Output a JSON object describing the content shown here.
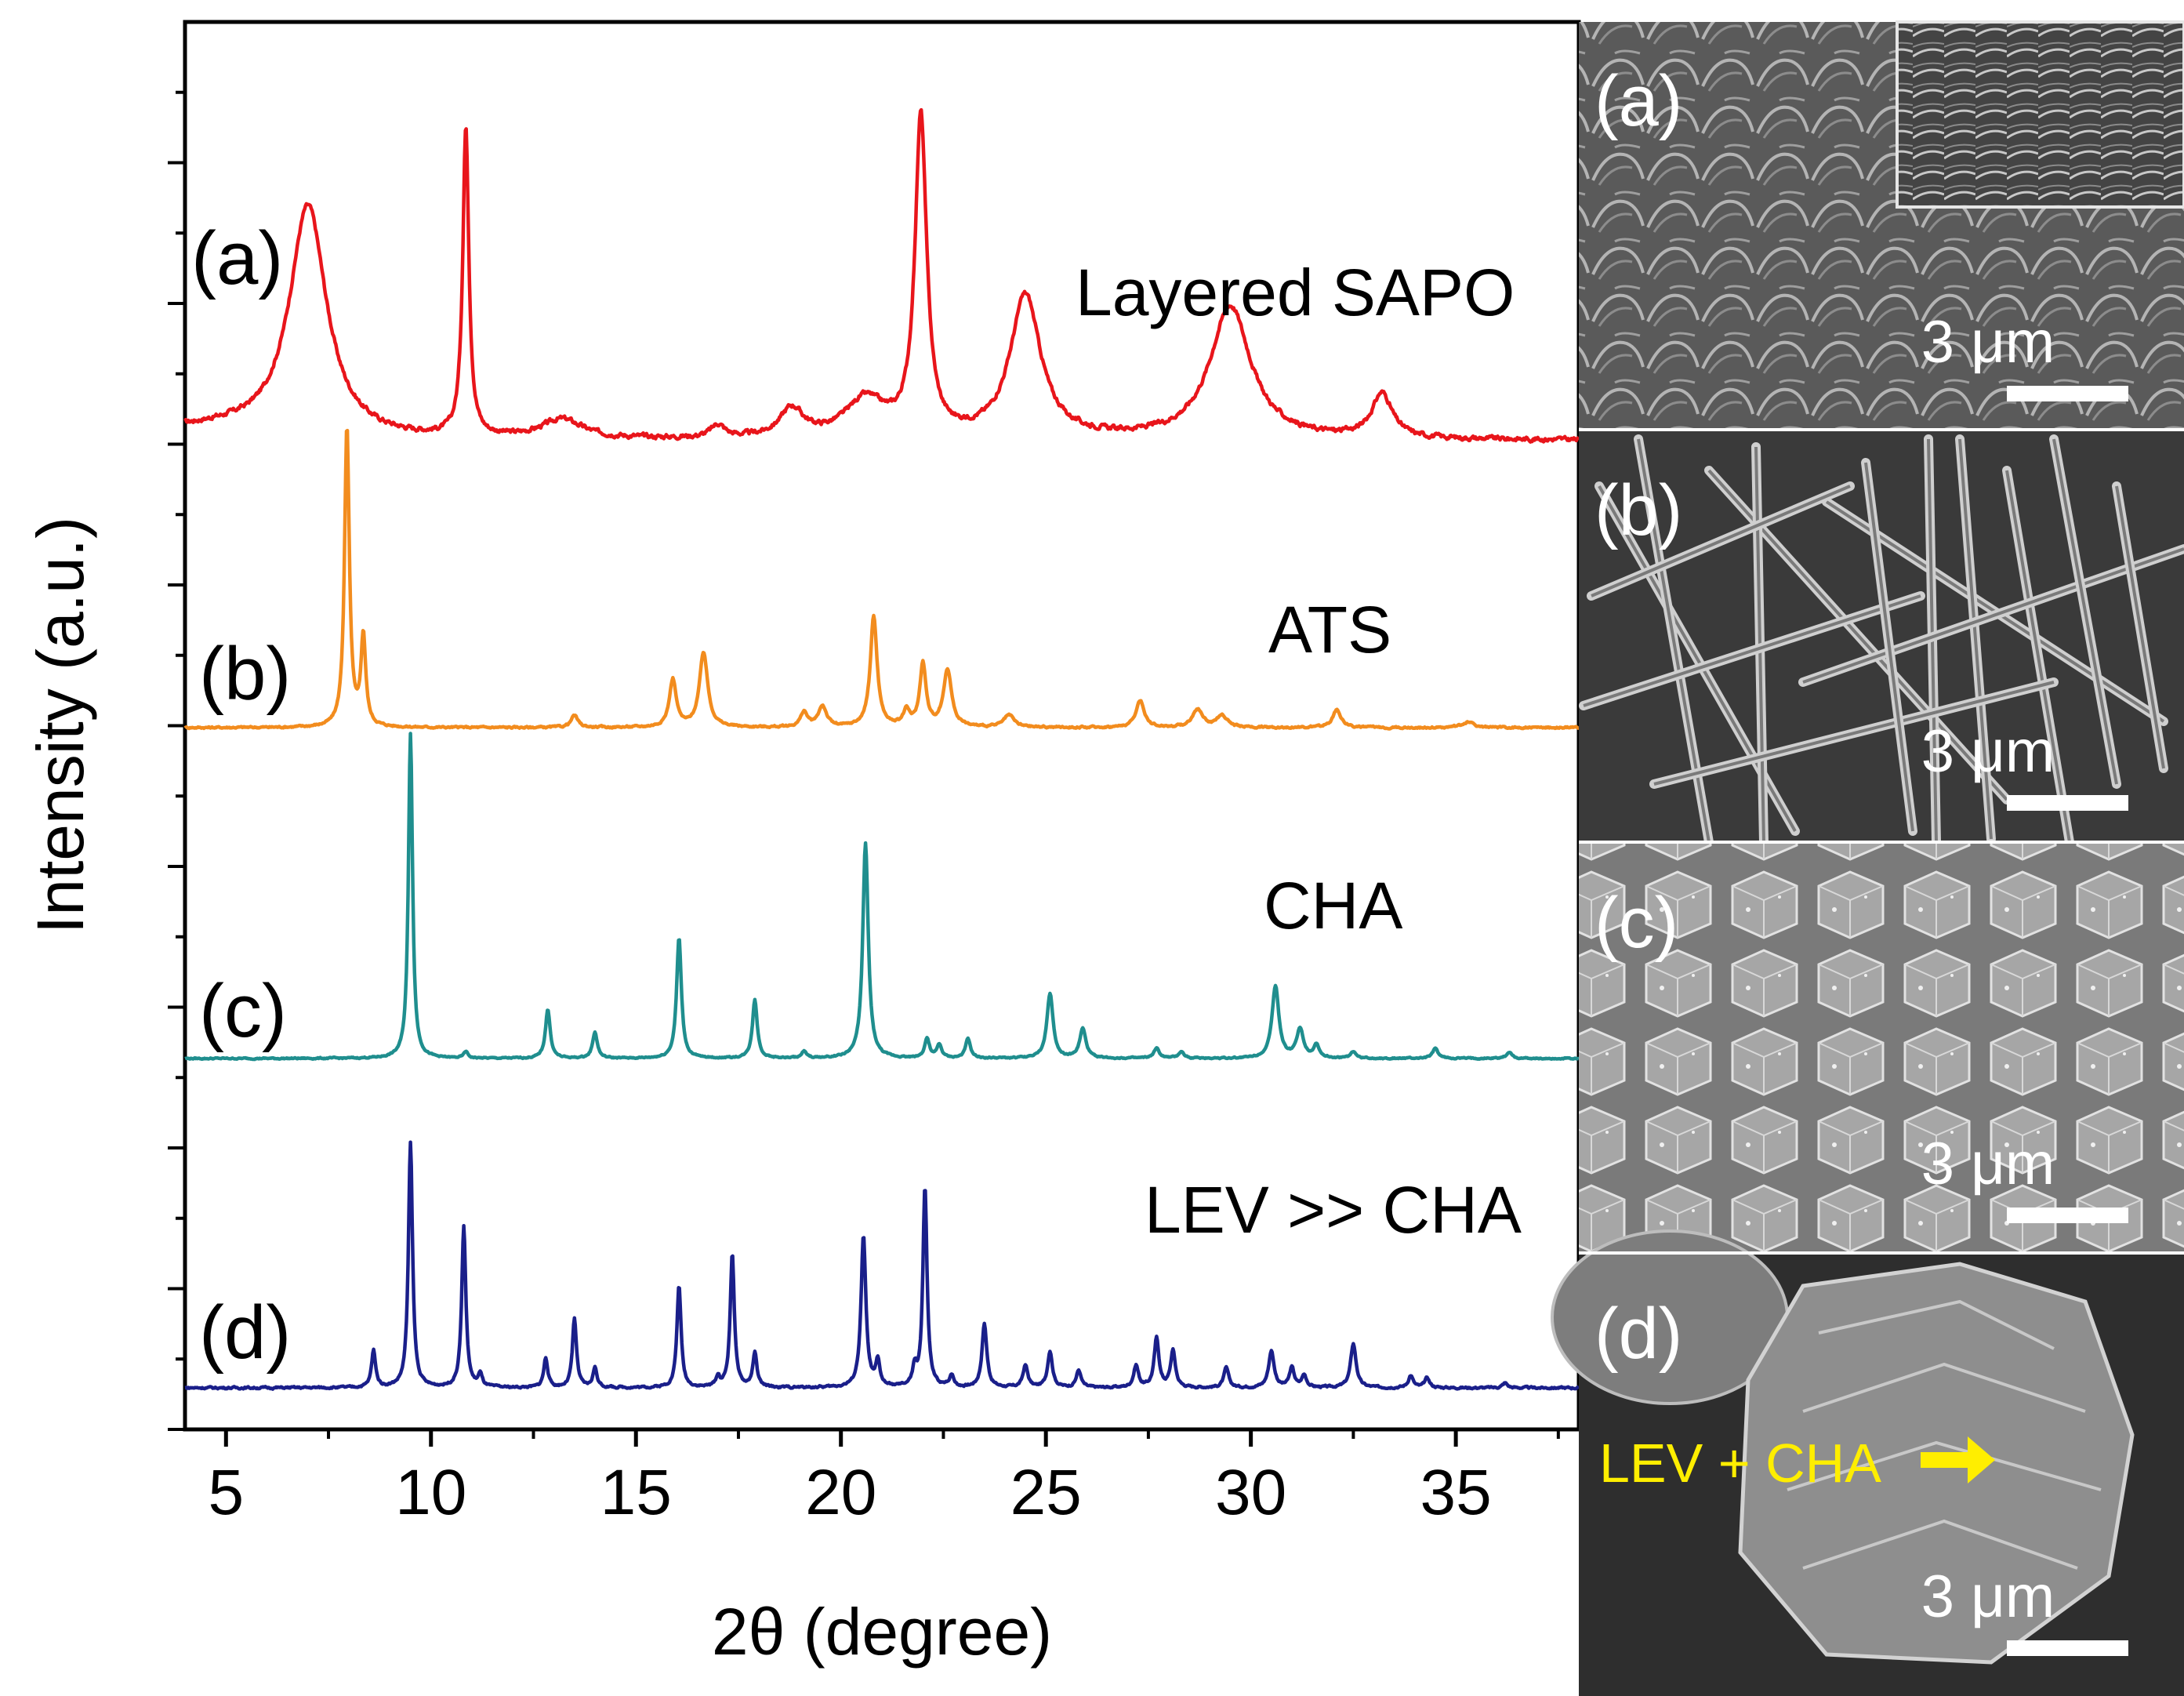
{
  "chart_data": {
    "type": "line",
    "title": "",
    "xlabel": "2θ (degree)",
    "ylabel": "Intensity (a.u.)",
    "xlim": [
      4,
      38
    ],
    "x_ticks": [
      5,
      10,
      15,
      20,
      25,
      30,
      35
    ],
    "x_tick_labels": [
      "5",
      "10",
      "15",
      "20",
      "25",
      "30",
      "35"
    ],
    "y_ticks_count": 10,
    "grid": false,
    "series": [
      {
        "name": "Layered SAPO",
        "label": "(a)",
        "color": "#e8151b",
        "baseline": 0.04,
        "noise": 0.014,
        "peaks": [
          [
            7.0,
            0.73,
            0.55
          ],
          [
            10.85,
            0.97,
            0.09
          ],
          [
            13.2,
            0.06,
            0.6
          ],
          [
            17.0,
            0.04,
            0.2
          ],
          [
            18.8,
            0.09,
            0.35
          ],
          [
            20.6,
            0.12,
            0.6
          ],
          [
            21.95,
            1.0,
            0.17
          ],
          [
            24.5,
            0.45,
            0.45
          ],
          [
            29.5,
            0.42,
            0.6
          ],
          [
            33.2,
            0.14,
            0.3
          ]
        ]
      },
      {
        "name": "ATS",
        "label": "(b)",
        "color": "#f28c1e",
        "baseline": 0.0,
        "noise": 0.006,
        "peaks": [
          [
            7.95,
            1.0,
            0.07
          ],
          [
            8.35,
            0.3,
            0.07
          ],
          [
            13.5,
            0.04,
            0.1
          ],
          [
            15.9,
            0.16,
            0.1
          ],
          [
            16.65,
            0.25,
            0.12
          ],
          [
            19.1,
            0.05,
            0.1
          ],
          [
            19.55,
            0.07,
            0.12
          ],
          [
            20.8,
            0.37,
            0.1
          ],
          [
            21.6,
            0.05,
            0.1
          ],
          [
            22.0,
            0.21,
            0.09
          ],
          [
            22.6,
            0.19,
            0.12
          ],
          [
            24.1,
            0.04,
            0.15
          ],
          [
            27.3,
            0.09,
            0.12
          ],
          [
            28.7,
            0.06,
            0.15
          ],
          [
            29.3,
            0.04,
            0.15
          ],
          [
            32.1,
            0.06,
            0.12
          ],
          [
            35.3,
            0.02,
            0.15
          ]
        ]
      },
      {
        "name": "CHA",
        "label": "(c)",
        "color": "#1f8e8e",
        "baseline": 0.0,
        "noise": 0.004,
        "peaks": [
          [
            9.5,
            1.0,
            0.06
          ],
          [
            10.85,
            0.02,
            0.06
          ],
          [
            12.85,
            0.15,
            0.07
          ],
          [
            14.0,
            0.08,
            0.07
          ],
          [
            16.05,
            0.37,
            0.07
          ],
          [
            17.9,
            0.18,
            0.07
          ],
          [
            19.1,
            0.02,
            0.07
          ],
          [
            20.6,
            0.66,
            0.08
          ],
          [
            22.1,
            0.06,
            0.07
          ],
          [
            22.4,
            0.04,
            0.07
          ],
          [
            23.1,
            0.06,
            0.07
          ],
          [
            25.1,
            0.2,
            0.09
          ],
          [
            25.9,
            0.09,
            0.09
          ],
          [
            27.7,
            0.03,
            0.08
          ],
          [
            28.3,
            0.02,
            0.08
          ],
          [
            30.6,
            0.22,
            0.1
          ],
          [
            31.2,
            0.09,
            0.1
          ],
          [
            31.6,
            0.04,
            0.08
          ],
          [
            32.5,
            0.02,
            0.08
          ],
          [
            34.5,
            0.03,
            0.08
          ],
          [
            36.3,
            0.02,
            0.08
          ]
        ]
      },
      {
        "name": "LEV >> CHA",
        "label": "(d)",
        "color": "#1a1f8a",
        "baseline": 0.0,
        "noise": 0.008,
        "peaks": [
          [
            8.6,
            0.15,
            0.06
          ],
          [
            9.5,
            1.0,
            0.06
          ],
          [
            10.8,
            0.66,
            0.06
          ],
          [
            11.2,
            0.05,
            0.06
          ],
          [
            12.8,
            0.12,
            0.06
          ],
          [
            13.5,
            0.28,
            0.06
          ],
          [
            14.0,
            0.08,
            0.06
          ],
          [
            16.05,
            0.42,
            0.06
          ],
          [
            17.0,
            0.04,
            0.06
          ],
          [
            17.35,
            0.55,
            0.06
          ],
          [
            17.9,
            0.14,
            0.06
          ],
          [
            20.55,
            0.62,
            0.07
          ],
          [
            20.9,
            0.1,
            0.06
          ],
          [
            21.8,
            0.07,
            0.06
          ],
          [
            22.05,
            0.82,
            0.06
          ],
          [
            22.7,
            0.05,
            0.06
          ],
          [
            23.5,
            0.26,
            0.07
          ],
          [
            24.5,
            0.09,
            0.07
          ],
          [
            25.1,
            0.15,
            0.07
          ],
          [
            25.8,
            0.07,
            0.07
          ],
          [
            27.2,
            0.09,
            0.07
          ],
          [
            27.7,
            0.2,
            0.07
          ],
          [
            28.1,
            0.15,
            0.07
          ],
          [
            29.4,
            0.08,
            0.07
          ],
          [
            30.5,
            0.15,
            0.08
          ],
          [
            31.0,
            0.08,
            0.07
          ],
          [
            31.3,
            0.05,
            0.07
          ],
          [
            32.5,
            0.18,
            0.08
          ],
          [
            33.9,
            0.05,
            0.07
          ],
          [
            34.3,
            0.04,
            0.07
          ],
          [
            36.2,
            0.02,
            0.07
          ]
        ]
      }
    ]
  },
  "annotations": {
    "a_label": "(a)",
    "b_label": "(b)",
    "c_label": "(c)",
    "d_label": "(d)",
    "a_name": "Layered SAPO",
    "b_name": "ATS",
    "c_name": "CHA",
    "d_name": "LEV >> CHA"
  },
  "sem_panels": [
    {
      "label": "(a)",
      "scale": "3 μm",
      "inset": true
    },
    {
      "label": "(b)",
      "scale": "3 μm"
    },
    {
      "label": "(c)",
      "scale": "3 μm"
    },
    {
      "label": "(d)",
      "scale": "3 μm",
      "annotation": "LEV + CHA",
      "annotation_color": "#ffee00"
    }
  ]
}
